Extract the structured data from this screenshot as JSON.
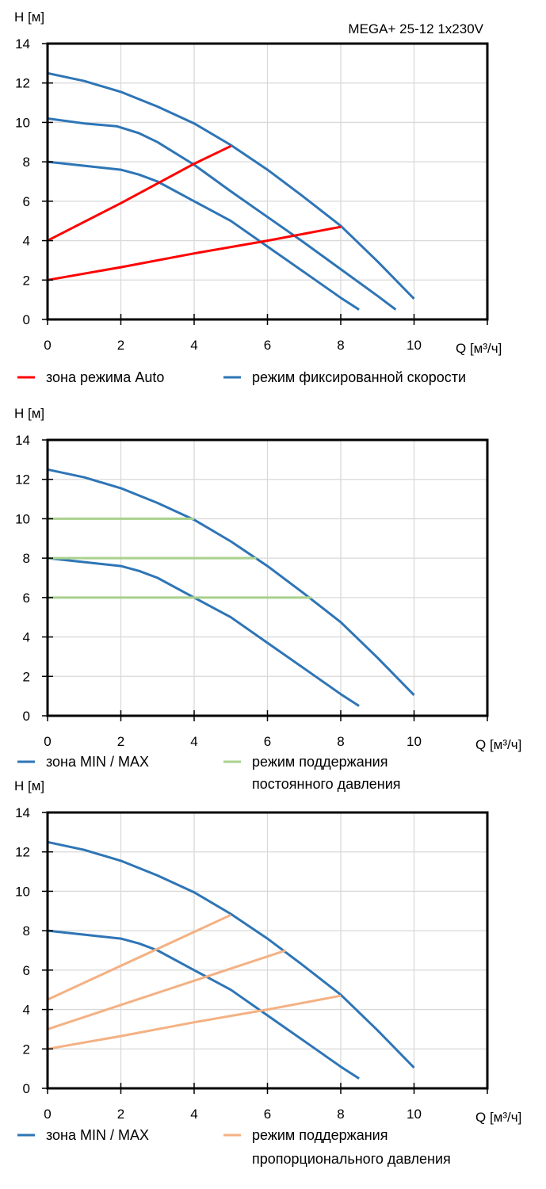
{
  "chart_data": [
    {
      "type": "line",
      "title": "MEGA+ 25-12 1x230V",
      "xlabel": "Q [м³/ч]",
      "ylabel": "H [м]",
      "xlim": [
        0,
        12
      ],
      "ylim": [
        0,
        14
      ],
      "xticks": [
        "0",
        "2",
        "4",
        "6",
        "8",
        "10"
      ],
      "yticks": [
        "0",
        "2",
        "4",
        "6",
        "8",
        "10",
        "12",
        "14"
      ],
      "grid": true,
      "legend_position": "bottom",
      "legend": [
        {
          "label": "зона режима Auto",
          "color": "#ff0000"
        },
        {
          "label": "режим фиксированной скорости",
          "color": "#2e75b6"
        }
      ],
      "series": [
        {
          "legend": 1,
          "color": "#2e75b6",
          "points": [
            [
              0,
              12.5
            ],
            [
              1,
              12.1
            ],
            [
              2,
              11.55
            ],
            [
              3,
              10.8
            ],
            [
              4,
              9.95
            ],
            [
              5,
              8.85
            ],
            [
              6,
              7.6
            ],
            [
              7,
              6.2
            ],
            [
              8,
              4.75
            ],
            [
              9,
              2.95
            ],
            [
              10,
              1.05
            ]
          ]
        },
        {
          "legend": 1,
          "color": "#2e75b6",
          "points": [
            [
              0,
              10.2
            ],
            [
              1,
              9.95
            ],
            [
              1.9,
              9.8
            ],
            [
              2.5,
              9.45
            ],
            [
              3,
              9.0
            ],
            [
              4,
              7.85
            ],
            [
              5,
              6.5
            ],
            [
              6,
              5.2
            ],
            [
              7,
              3.9
            ],
            [
              8,
              2.55
            ],
            [
              9,
              1.2
            ],
            [
              9.5,
              0.5
            ]
          ]
        },
        {
          "legend": 1,
          "color": "#2e75b6",
          "points": [
            [
              0,
              8
            ],
            [
              1,
              7.8
            ],
            [
              2,
              7.6
            ],
            [
              2.5,
              7.35
            ],
            [
              3,
              7.0
            ],
            [
              4,
              6.0
            ],
            [
              5,
              5.0
            ],
            [
              6,
              3.7
            ],
            [
              7,
              2.4
            ],
            [
              8,
              1.1
            ],
            [
              8.5,
              0.5
            ]
          ]
        },
        {
          "legend": 0,
          "color": "#ff0000",
          "points": [
            [
              0,
              4
            ],
            [
              2,
              5.9
            ],
            [
              4,
              7.9
            ],
            [
              5,
              8.8
            ]
          ]
        },
        {
          "legend": 0,
          "color": "#ff0000",
          "points": [
            [
              0,
              2
            ],
            [
              2,
              2.65
            ],
            [
              4,
              3.35
            ],
            [
              6,
              4.0
            ],
            [
              8,
              4.7
            ]
          ]
        }
      ]
    },
    {
      "type": "line",
      "xlabel": "Q [м³/ч]",
      "ylabel": "H [м]",
      "xlim": [
        0,
        12
      ],
      "ylim": [
        0,
        14
      ],
      "xticks": [
        "0",
        "2",
        "4",
        "6",
        "8",
        "10"
      ],
      "yticks": [
        "0",
        "2",
        "4",
        "6",
        "8",
        "10",
        "12",
        "14"
      ],
      "grid": true,
      "legend_position": "bottom",
      "legend": [
        {
          "label": "зона MIN / MAX",
          "color": "#2e75b6"
        },
        {
          "label": "режим поддержания",
          "label2": "постоянного давления",
          "color": "#a9d18e"
        }
      ],
      "series": [
        {
          "legend": 0,
          "color": "#2e75b6",
          "points": [
            [
              0,
              12.5
            ],
            [
              1,
              12.1
            ],
            [
              2,
              11.55
            ],
            [
              3,
              10.8
            ],
            [
              4,
              9.95
            ],
            [
              5,
              8.85
            ],
            [
              6,
              7.6
            ],
            [
              7,
              6.2
            ],
            [
              8,
              4.75
            ],
            [
              9,
              2.95
            ],
            [
              10,
              1.05
            ]
          ]
        },
        {
          "legend": 0,
          "color": "#2e75b6",
          "points": [
            [
              0,
              8
            ],
            [
              1,
              7.8
            ],
            [
              2,
              7.6
            ],
            [
              2.5,
              7.35
            ],
            [
              3,
              7.0
            ],
            [
              4,
              6.0
            ],
            [
              5,
              5.0
            ],
            [
              6,
              3.7
            ],
            [
              7,
              2.4
            ],
            [
              8,
              1.1
            ],
            [
              8.5,
              0.5
            ]
          ]
        },
        {
          "legend": 1,
          "color": "#a9d18e",
          "points": [
            [
              0,
              10
            ],
            [
              4,
              10
            ]
          ]
        },
        {
          "legend": 1,
          "color": "#a9d18e",
          "points": [
            [
              0,
              8
            ],
            [
              5.7,
              8
            ]
          ]
        },
        {
          "legend": 1,
          "color": "#a9d18e",
          "points": [
            [
              0,
              6
            ],
            [
              7.2,
              6
            ]
          ]
        }
      ]
    },
    {
      "type": "line",
      "xlabel": "Q [м³/ч]",
      "ylabel": "H [м]",
      "xlim": [
        0,
        12
      ],
      "ylim": [
        0,
        14
      ],
      "xticks": [
        "0",
        "2",
        "4",
        "6",
        "8",
        "10"
      ],
      "yticks": [
        "0",
        "2",
        "4",
        "6",
        "8",
        "10",
        "12",
        "14"
      ],
      "grid": true,
      "legend_position": "bottom",
      "legend": [
        {
          "label": "зона MIN / MAX",
          "color": "#2e75b6"
        },
        {
          "label": "режим поддержания",
          "label2": "пропорционального давления",
          "color": "#f4b183"
        }
      ],
      "series": [
        {
          "legend": 0,
          "color": "#2e75b6",
          "points": [
            [
              0,
              12.5
            ],
            [
              1,
              12.1
            ],
            [
              2,
              11.55
            ],
            [
              3,
              10.8
            ],
            [
              4,
              9.95
            ],
            [
              5,
              8.85
            ],
            [
              6,
              7.6
            ],
            [
              7,
              6.2
            ],
            [
              8,
              4.75
            ],
            [
              9,
              2.95
            ],
            [
              10,
              1.05
            ]
          ]
        },
        {
          "legend": 0,
          "color": "#2e75b6",
          "points": [
            [
              0,
              8
            ],
            [
              1,
              7.8
            ],
            [
              2,
              7.6
            ],
            [
              2.5,
              7.35
            ],
            [
              3,
              7.0
            ],
            [
              4,
              6.0
            ],
            [
              5,
              5.0
            ],
            [
              6,
              3.7
            ],
            [
              7,
              2.4
            ],
            [
              8,
              1.1
            ],
            [
              8.5,
              0.5
            ]
          ]
        },
        {
          "legend": 1,
          "color": "#f4b183",
          "points": [
            [
              0,
              4.5
            ],
            [
              5,
              8.8
            ]
          ]
        },
        {
          "legend": 1,
          "color": "#f4b183",
          "points": [
            [
              0,
              3
            ],
            [
              6.5,
              7
            ]
          ]
        },
        {
          "legend": 1,
          "color": "#f4b183",
          "points": [
            [
              0,
              2
            ],
            [
              2,
              2.65
            ],
            [
              4,
              3.35
            ],
            [
              6,
              4.0
            ],
            [
              8,
              4.7
            ]
          ]
        }
      ]
    }
  ]
}
